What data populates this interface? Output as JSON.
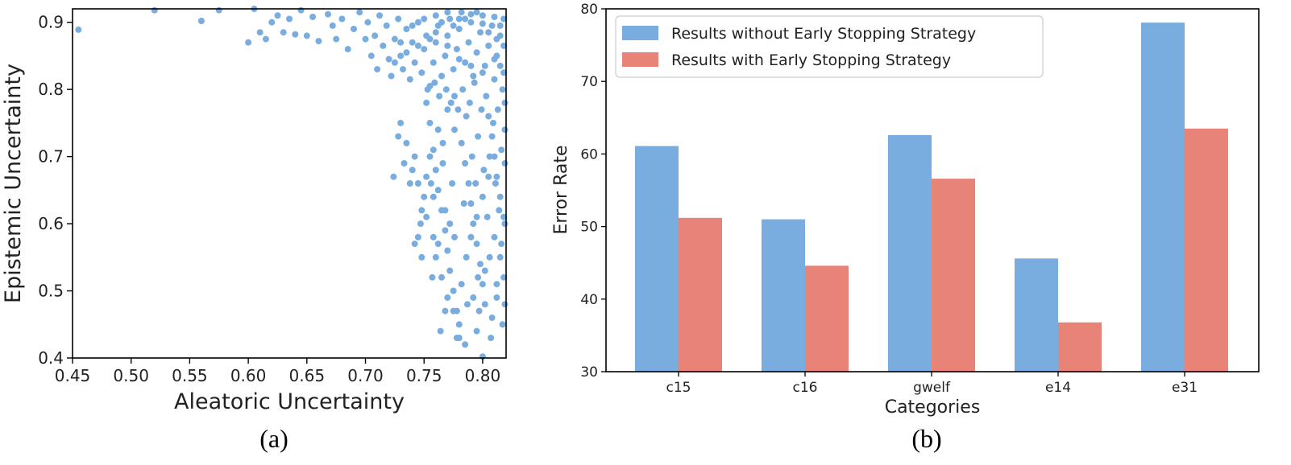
{
  "panel_labels": {
    "a": "(a)",
    "b": "(b)"
  },
  "colors": {
    "blue": "#7aaddf",
    "red": "#e88378",
    "axis": "#000000"
  },
  "chart_data": [
    {
      "type": "scatter",
      "xlabel": "Aleatoric Uncertainty",
      "ylabel": "Epistemic Uncertainty",
      "xlim": [
        0.45,
        0.82
      ],
      "ylim": [
        0.4,
        0.92
      ],
      "xticks": [
        "0.45",
        "0.50",
        "0.55",
        "0.60",
        "0.65",
        "0.70",
        "0.75",
        "0.80"
      ],
      "yticks": [
        "0.4",
        "0.5",
        "0.6",
        "0.7",
        "0.8",
        "0.9"
      ],
      "grid": false,
      "points": [
        [
          0.455,
          0.889
        ],
        [
          0.52,
          0.918
        ],
        [
          0.56,
          0.902
        ],
        [
          0.575,
          0.918
        ],
        [
          0.6,
          0.87
        ],
        [
          0.605,
          0.92
        ],
        [
          0.61,
          0.885
        ],
        [
          0.615,
          0.875
        ],
        [
          0.62,
          0.9
        ],
        [
          0.625,
          0.91
        ],
        [
          0.63,
          0.885
        ],
        [
          0.635,
          0.905
        ],
        [
          0.64,
          0.882
        ],
        [
          0.645,
          0.918
        ],
        [
          0.65,
          0.88
        ],
        [
          0.655,
          0.908
        ],
        [
          0.66,
          0.872
        ],
        [
          0.668,
          0.912
        ],
        [
          0.672,
          0.895
        ],
        [
          0.675,
          0.875
        ],
        [
          0.68,
          0.905
        ],
        [
          0.685,
          0.86
        ],
        [
          0.69,
          0.89
        ],
        [
          0.695,
          0.915
        ],
        [
          0.7,
          0.875
        ],
        [
          0.702,
          0.9
        ],
        [
          0.705,
          0.85
        ],
        [
          0.708,
          0.88
        ],
        [
          0.71,
          0.83
        ],
        [
          0.712,
          0.91
        ],
        [
          0.715,
          0.865
        ],
        [
          0.718,
          0.895
        ],
        [
          0.72,
          0.845
        ],
        [
          0.722,
          0.82
        ],
        [
          0.725,
          0.875
        ],
        [
          0.728,
          0.905
        ],
        [
          0.73,
          0.85
        ],
        [
          0.732,
          0.83
        ],
        [
          0.735,
          0.89
        ],
        [
          0.738,
          0.815
        ],
        [
          0.74,
          0.87
        ],
        [
          0.742,
          0.84
        ],
        [
          0.745,
          0.9
        ],
        [
          0.748,
          0.825
        ],
        [
          0.75,
          0.86
        ],
        [
          0.752,
          0.88
        ],
        [
          0.755,
          0.805
        ],
        [
          0.758,
          0.84
        ],
        [
          0.76,
          0.87
        ],
        [
          0.762,
          0.895
        ],
        [
          0.765,
          0.82
        ],
        [
          0.768,
          0.85
        ],
        [
          0.77,
          0.88
        ],
        [
          0.772,
          0.905
        ],
        [
          0.775,
          0.83
        ],
        [
          0.778,
          0.86
        ],
        [
          0.78,
          0.89
        ],
        [
          0.782,
          0.915
        ],
        [
          0.785,
          0.84
        ],
        [
          0.788,
          0.87
        ],
        [
          0.79,
          0.9
        ],
        [
          0.792,
          0.82
        ],
        [
          0.795,
          0.855
        ],
        [
          0.798,
          0.885
        ],
        [
          0.8,
          0.91
        ],
        [
          0.802,
          0.835
        ],
        [
          0.805,
          0.865
        ],
        [
          0.808,
          0.895
        ],
        [
          0.81,
          0.815
        ],
        [
          0.812,
          0.85
        ],
        [
          0.815,
          0.88
        ],
        [
          0.818,
          0.905
        ],
        [
          0.76,
          0.91
        ],
        [
          0.77,
          0.915
        ],
        [
          0.78,
          0.905
        ],
        [
          0.79,
          0.912
        ],
        [
          0.8,
          0.898
        ],
        [
          0.81,
          0.908
        ],
        [
          0.815,
          0.895
        ],
        [
          0.765,
          0.9
        ],
        [
          0.775,
          0.895
        ],
        [
          0.785,
          0.905
        ],
        [
          0.795,
          0.915
        ],
        [
          0.805,
          0.885
        ],
        [
          0.812,
          0.875
        ],
        [
          0.818,
          0.865
        ],
        [
          0.755,
          0.875
        ],
        [
          0.745,
          0.865
        ],
        [
          0.735,
          0.855
        ],
        [
          0.725,
          0.84
        ],
        [
          0.73,
          0.87
        ],
        [
          0.74,
          0.895
        ],
        [
          0.75,
          0.905
        ],
        [
          0.76,
          0.885
        ],
        [
          0.77,
          0.865
        ],
        [
          0.78,
          0.845
        ],
        [
          0.79,
          0.835
        ],
        [
          0.8,
          0.825
        ],
        [
          0.81,
          0.845
        ],
        [
          0.815,
          0.835
        ],
        [
          0.818,
          0.825
        ],
        [
          0.73,
          0.75
        ],
        [
          0.735,
          0.72
        ],
        [
          0.74,
          0.68
        ],
        [
          0.742,
          0.7
        ],
        [
          0.745,
          0.66
        ],
        [
          0.748,
          0.62
        ],
        [
          0.75,
          0.64
        ],
        [
          0.752,
          0.78
        ],
        [
          0.755,
          0.75
        ],
        [
          0.758,
          0.71
        ],
        [
          0.76,
          0.68
        ],
        [
          0.762,
          0.65
        ],
        [
          0.765,
          0.62
        ],
        [
          0.768,
          0.59
        ],
        [
          0.77,
          0.56
        ],
        [
          0.772,
          0.53
        ],
        [
          0.775,
          0.5
        ],
        [
          0.778,
          0.47
        ],
        [
          0.78,
          0.45
        ],
        [
          0.782,
          0.72
        ],
        [
          0.785,
          0.69
        ],
        [
          0.788,
          0.66
        ],
        [
          0.79,
          0.63
        ],
        [
          0.792,
          0.6
        ],
        [
          0.795,
          0.57
        ],
        [
          0.798,
          0.54
        ],
        [
          0.8,
          0.51
        ],
        [
          0.802,
          0.48
        ],
        [
          0.805,
          0.76
        ],
        [
          0.808,
          0.73
        ],
        [
          0.81,
          0.7
        ],
        [
          0.812,
          0.67
        ],
        [
          0.815,
          0.64
        ],
        [
          0.818,
          0.61
        ],
        [
          0.76,
          0.55
        ],
        [
          0.765,
          0.52
        ],
        [
          0.77,
          0.49
        ],
        [
          0.775,
          0.47
        ],
        [
          0.78,
          0.43
        ],
        [
          0.785,
          0.42
        ],
        [
          0.79,
          0.58
        ],
        [
          0.795,
          0.61
        ],
        [
          0.8,
          0.64
        ],
        [
          0.805,
          0.67
        ],
        [
          0.81,
          0.58
        ],
        [
          0.815,
          0.55
        ],
        [
          0.818,
          0.52
        ],
        [
          0.812,
          0.49
        ],
        [
          0.808,
          0.46
        ],
        [
          0.8,
          0.402
        ],
        [
          0.795,
          0.44
        ],
        [
          0.778,
          0.43
        ],
        [
          0.768,
          0.47
        ],
        [
          0.758,
          0.58
        ],
        [
          0.752,
          0.61
        ],
        [
          0.748,
          0.55
        ],
        [
          0.742,
          0.57
        ],
        [
          0.738,
          0.66
        ],
        [
          0.733,
          0.69
        ],
        [
          0.728,
          0.73
        ],
        [
          0.724,
          0.67
        ],
        [
          0.755,
          0.7
        ],
        [
          0.762,
          0.74
        ],
        [
          0.77,
          0.77
        ],
        [
          0.776,
          0.79
        ],
        [
          0.786,
          0.76
        ],
        [
          0.796,
          0.73
        ],
        [
          0.806,
          0.7
        ],
        [
          0.816,
          0.71
        ],
        [
          0.819,
          0.78
        ],
        [
          0.817,
          0.8
        ],
        [
          0.813,
          0.77
        ],
        [
          0.803,
          0.79
        ],
        [
          0.793,
          0.81
        ],
        [
          0.783,
          0.8
        ],
        [
          0.773,
          0.78
        ],
        [
          0.763,
          0.79
        ],
        [
          0.753,
          0.8
        ],
        [
          0.766,
          0.69
        ],
        [
          0.774,
          0.66
        ],
        [
          0.784,
          0.63
        ],
        [
          0.794,
          0.66
        ],
        [
          0.804,
          0.61
        ],
        [
          0.814,
          0.62
        ],
        [
          0.819,
          0.6
        ],
        [
          0.816,
          0.57
        ],
        [
          0.806,
          0.55
        ],
        [
          0.796,
          0.52
        ],
        [
          0.786,
          0.55
        ],
        [
          0.776,
          0.58
        ],
        [
          0.768,
          0.62
        ],
        [
          0.758,
          0.64
        ],
        [
          0.752,
          0.67
        ],
        [
          0.762,
          0.57
        ],
        [
          0.772,
          0.6
        ],
        [
          0.782,
          0.51
        ],
        [
          0.792,
          0.49
        ],
        [
          0.802,
          0.53
        ],
        [
          0.812,
          0.51
        ],
        [
          0.819,
          0.48
        ],
        [
          0.817,
          0.45
        ],
        [
          0.807,
          0.43
        ],
        [
          0.797,
          0.47
        ],
        [
          0.787,
          0.48
        ],
        [
          0.764,
          0.44
        ],
        [
          0.757,
          0.52
        ],
        [
          0.747,
          0.6
        ],
        [
          0.745,
          0.58
        ],
        [
          0.756,
          0.66
        ],
        [
          0.766,
          0.72
        ],
        [
          0.776,
          0.74
        ],
        [
          0.791,
          0.7
        ],
        [
          0.801,
          0.68
        ],
        [
          0.811,
          0.66
        ],
        [
          0.819,
          0.69
        ],
        [
          0.819,
          0.74
        ],
        [
          0.809,
          0.75
        ],
        [
          0.799,
          0.77
        ],
        [
          0.789,
          0.78
        ],
        [
          0.779,
          0.77
        ],
        [
          0.769,
          0.8
        ],
        [
          0.759,
          0.81
        ]
      ]
    },
    {
      "type": "bar",
      "xlabel": "Categories",
      "ylabel": "Error Rate",
      "ylim": [
        30,
        80
      ],
      "yticks": [
        "30",
        "40",
        "50",
        "60",
        "70",
        "80"
      ],
      "categories": [
        "c15",
        "c16",
        "gwelf",
        "e14",
        "e31"
      ],
      "legend_position": "top-left",
      "grid": false,
      "series": [
        {
          "name": "Results without Early Stopping Strategy",
          "color": "#7aaddf",
          "values": [
            61.1,
            51.0,
            62.6,
            45.6,
            78.1
          ]
        },
        {
          "name": "Results with Early Stopping Strategy",
          "color": "#e88378",
          "values": [
            51.2,
            44.6,
            56.6,
            36.8,
            63.5
          ]
        }
      ]
    }
  ]
}
